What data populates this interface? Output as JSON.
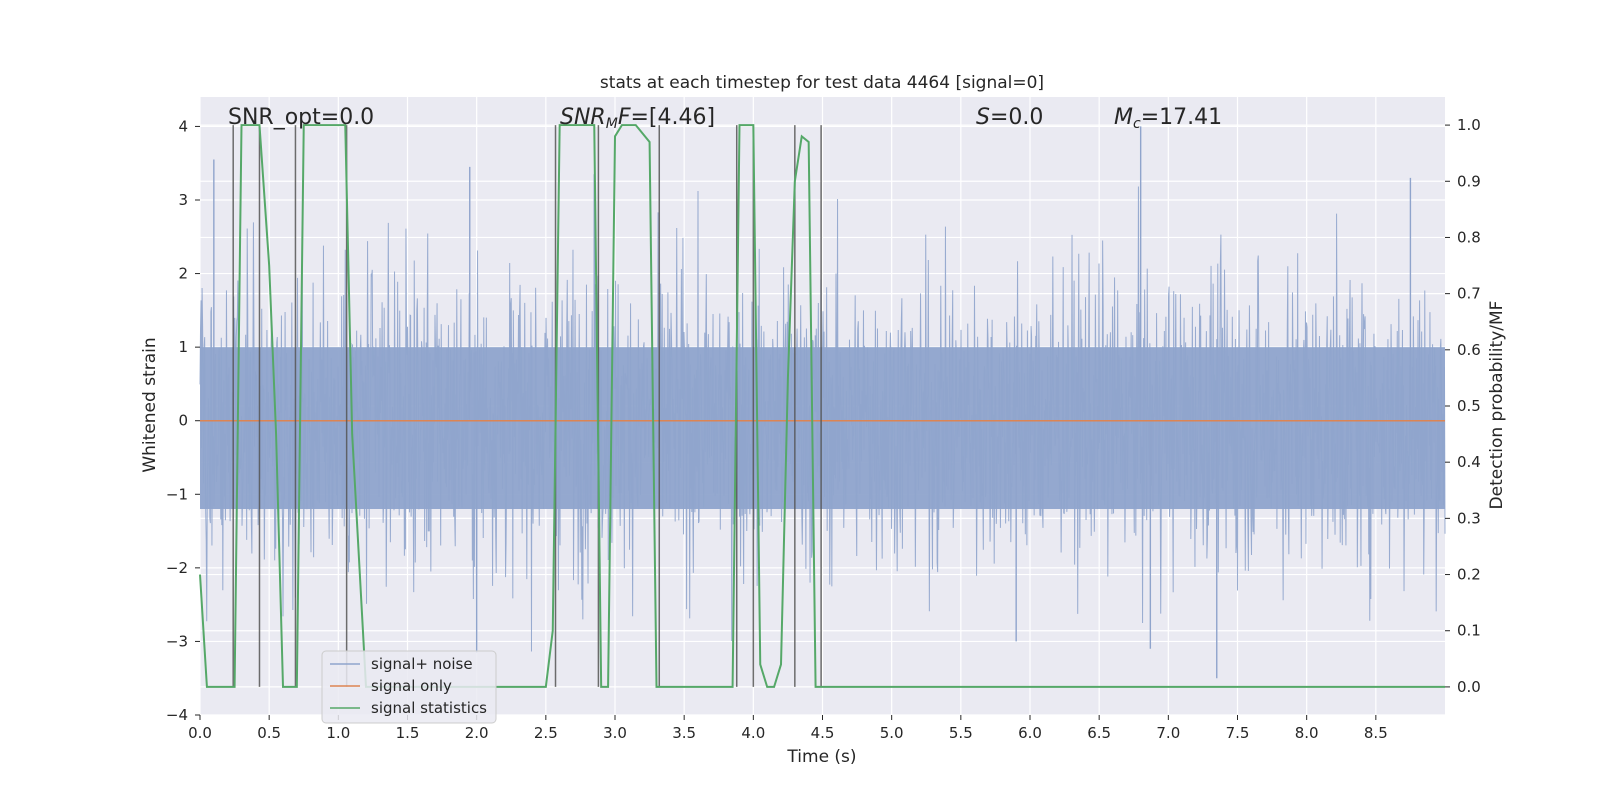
{
  "chart_data": {
    "type": "line",
    "title": "stats at each timestep for test data 4464 [signal=0]",
    "xlabel": "Time (s)",
    "ylabel": "Whitened strain",
    "y2label": "Detection probability/MF",
    "xlim": [
      0,
      9.0
    ],
    "ylim": [
      -4,
      4.4
    ],
    "y2lim": [
      -0.05,
      1.05
    ],
    "xticks": [
      0.0,
      0.5,
      1.0,
      1.5,
      2.0,
      2.5,
      3.0,
      3.5,
      4.0,
      4.5,
      5.0,
      5.5,
      6.0,
      6.5,
      7.0,
      7.5,
      8.0,
      8.5
    ],
    "xtick_labels": [
      "0.0",
      "0.5",
      "1.0",
      "1.5",
      "2.0",
      "2.5",
      "3.0",
      "3.5",
      "4.0",
      "4.5",
      "5.0",
      "5.5",
      "6.0",
      "6.5",
      "7.0",
      "7.5",
      "8.0",
      "8.5"
    ],
    "yticks": [
      -4,
      -3,
      -2,
      -1,
      0,
      1,
      2,
      3,
      4
    ],
    "ytick_labels": [
      "−4",
      "−3",
      "−2",
      "−1",
      "0",
      "1",
      "2",
      "3",
      "4"
    ],
    "y2ticks": [
      0.0,
      0.1,
      0.2,
      0.3,
      0.4,
      0.5,
      0.6,
      0.7,
      0.8,
      0.9,
      1.0
    ],
    "y2tick_labels": [
      "0.0",
      "0.1",
      "0.2",
      "0.3",
      "0.4",
      "0.5",
      "0.6",
      "0.7",
      "0.8",
      "0.9",
      "1.0"
    ],
    "grid": true,
    "legend_position": "lower-left",
    "annotations": {
      "snr_opt": "SNR_opt=0.0",
      "snr_mf": "=[4.46]",
      "snr_mf_base": "SNR",
      "snr_mf_sub": "M",
      "snr_mf_tail": "F",
      "s_stat": "=0.0",
      "s_stat_sym": "S",
      "mc": "=17.41",
      "mc_sym": "M",
      "mc_sub": "c"
    },
    "series": [
      {
        "name": "signal+ noise",
        "color": "#8fa4cc",
        "kind": "noise-band",
        "envelope_range": [
          -3.6,
          4.0
        ],
        "notable_peaks": [
          [
            0.1,
            3.55
          ],
          [
            1.95,
            3.45
          ],
          [
            2.85,
            3.35
          ],
          [
            6.8,
            4.0
          ],
          [
            7.35,
            -3.5
          ],
          [
            8.75,
            3.3
          ],
          [
            2.0,
            -3.15
          ],
          [
            6.87,
            -3.1
          ],
          [
            5.9,
            -3.0
          ]
        ]
      },
      {
        "name": "signal only",
        "color": "#dd8452",
        "x": [
          0.0,
          9.0
        ],
        "y": [
          0.0,
          0.0
        ]
      },
      {
        "name": "signal statistics",
        "color": "#55a868",
        "axis": "right",
        "x": [
          0.0,
          0.05,
          0.2,
          0.25,
          0.3,
          0.35,
          0.4,
          0.43,
          0.5,
          0.55,
          0.6,
          0.65,
          0.7,
          0.75,
          0.8,
          0.9,
          1.0,
          1.05,
          1.1,
          1.2,
          1.3,
          1.5,
          2.0,
          2.5,
          2.55,
          2.6,
          2.65,
          2.7,
          2.8,
          2.85,
          2.9,
          2.95,
          3.0,
          3.05,
          3.15,
          3.25,
          3.3,
          3.35,
          3.4,
          3.5,
          3.8,
          3.85,
          3.9,
          4.0,
          4.05,
          4.1,
          4.15,
          4.2,
          4.25,
          4.3,
          4.35,
          4.4,
          4.45,
          4.5,
          4.55,
          4.6,
          5.0,
          6.0,
          7.0,
          8.0,
          9.0
        ],
        "y": [
          0.2,
          0.0,
          0.0,
          0.0,
          1.0,
          1.0,
          1.0,
          1.0,
          0.75,
          0.45,
          0.0,
          0.0,
          0.0,
          1.0,
          1.0,
          1.0,
          1.0,
          1.0,
          0.45,
          0.0,
          0.0,
          0.0,
          0.0,
          0.0,
          0.1,
          1.0,
          1.0,
          1.0,
          1.0,
          1.0,
          0.0,
          0.0,
          0.98,
          1.0,
          1.0,
          0.97,
          0.0,
          0.0,
          0.0,
          0.0,
          0.0,
          0.0,
          1.0,
          1.0,
          0.04,
          0.0,
          0.0,
          0.04,
          0.55,
          0.9,
          0.98,
          0.97,
          0.0,
          0.0,
          0.0,
          0.0,
          0.0,
          0.0,
          0.0,
          0.0,
          0.0
        ]
      }
    ],
    "vertical_lines_x": [
      0.24,
      0.43,
      0.69,
      1.06,
      2.57,
      2.88,
      3.32,
      3.88,
      4.0,
      4.3,
      4.49
    ]
  }
}
